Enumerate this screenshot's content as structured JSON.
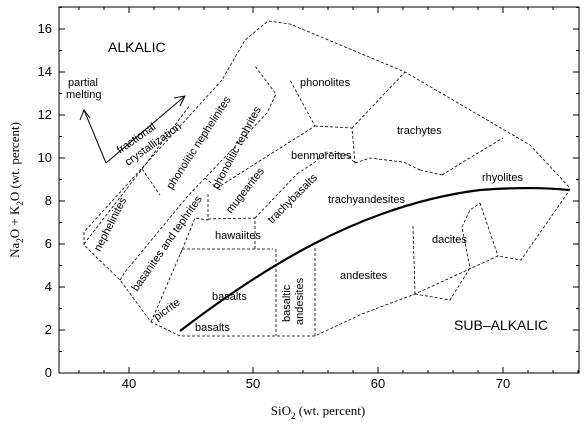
{
  "axes": {
    "x": {
      "ticks": [
        "40",
        "50",
        "60",
        "70"
      ],
      "tick_values": [
        40,
        50,
        60,
        70
      ],
      "range": [
        33.5,
        77.5
      ]
    },
    "y": {
      "ticks": [
        "0",
        "2",
        "4",
        "6",
        "8",
        "10",
        "12",
        "14",
        "16"
      ],
      "tick_values": [
        0,
        2,
        4,
        6,
        8,
        10,
        12,
        14,
        16
      ],
      "range": [
        0,
        16.8
      ]
    },
    "xlabel_main": "SiO",
    "xlabel_sub": "2",
    "xlabel_tail": " (wt. percent)",
    "ylabel_na": "Na",
    "ylabel_sub1": "2",
    "ylabel_mid": "O + K",
    "ylabel_sub2": "2",
    "ylabel_tail": "O (wt. percent)"
  },
  "regions": {
    "alkalic": "ALKALIC",
    "subalkalic": "SUB–ALKALIC"
  },
  "arrows": {
    "partial_melting_1": "partial",
    "partial_melting_2": "melting",
    "fractional_1": "fractional",
    "fractional_2": "crystallization"
  },
  "zones": {
    "phonolites": "phonolites",
    "phonolitic_nephelinites": "phonolitic nephelinites",
    "phonolitic_tephrites": "phonolitic tephrites",
    "trachytes": "trachytes",
    "benmoreites": "benmoreites",
    "mugearites": "mugearites",
    "trachybasalts": "trachybasalts",
    "trachyandesites": "trachyandesites",
    "rhyolites": "rhyolites",
    "nephelinites": "nephelinites",
    "basanites_and_tephrites": "basanites and tephrites",
    "hawaiites": "hawaiites",
    "basalts_upper": "basalts",
    "basalts_lower": "basalts",
    "basaltic_andesites_1": "basaltic",
    "basaltic_andesites_2": "andesites",
    "andesites": "andesites",
    "dacites": "dacites",
    "picrite": "picrite"
  }
}
